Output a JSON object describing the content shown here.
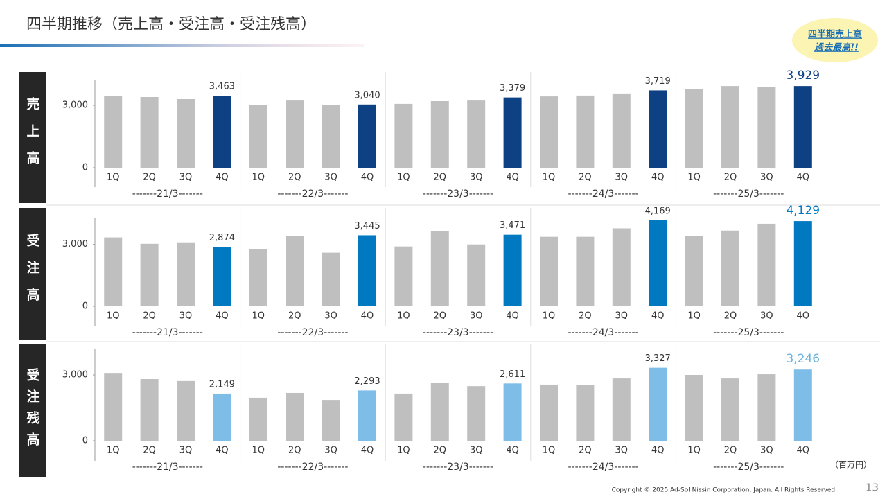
{
  "title": "四半期推移（売上高・受注高・受注残高）",
  "badge": [
    "四半期売上高",
    "過去最高!!"
  ],
  "unit": "（百万円）",
  "copyright": "Copyright © 2025 Ad-Sol Nissin Corporation, Japan. All Rights Reserved.",
  "page_number": "13",
  "chart_data": [
    {
      "type": "bar",
      "title": "売上高",
      "categories": [
        "1Q",
        "2Q",
        "3Q",
        "4Q",
        "1Q",
        "2Q",
        "3Q",
        "4Q",
        "1Q",
        "2Q",
        "3Q",
        "4Q",
        "1Q",
        "2Q",
        "3Q",
        "4Q",
        "1Q",
        "2Q",
        "3Q",
        "4Q"
      ],
      "groups": [
        "-------21/3-------",
        "-------22/3-------",
        "-------23/3-------",
        "-------24/3-------",
        "-------25/3-------"
      ],
      "values": [
        3450,
        3400,
        3300,
        3463,
        3030,
        3230,
        3000,
        3040,
        3070,
        3200,
        3230,
        3379,
        3430,
        3470,
        3570,
        3719,
        3800,
        3930,
        3900,
        3929
      ],
      "value_labels": [
        null,
        null,
        null,
        "3,463",
        null,
        null,
        null,
        "3,040",
        null,
        null,
        null,
        "3,379",
        null,
        null,
        null,
        "3,719",
        null,
        null,
        null,
        "3,929"
      ],
      "color": "#bfbfbf",
      "highlight": "4Q",
      "highlight_color": "#0d4183",
      "ylim": [
        0,
        4200
      ],
      "yticks": [
        0,
        {
          "value": 3000,
          "label": "3,000"
        }
      ]
    },
    {
      "type": "bar",
      "title": "受注高",
      "categories": [
        "1Q",
        "2Q",
        "3Q",
        "4Q",
        "1Q",
        "2Q",
        "3Q",
        "4Q",
        "1Q",
        "2Q",
        "3Q",
        "4Q",
        "1Q",
        "2Q",
        "3Q",
        "4Q",
        "1Q",
        "2Q",
        "3Q",
        "4Q"
      ],
      "groups": [
        "-------21/3-------",
        "-------22/3-------",
        "-------23/3-------",
        "-------24/3-------",
        "-------25/3-------"
      ],
      "values": [
        3340,
        3030,
        3100,
        2874,
        2760,
        3400,
        2600,
        3445,
        2900,
        3640,
        3000,
        3471,
        3370,
        3370,
        3780,
        4169,
        3400,
        3670,
        4000,
        4129
      ],
      "value_labels": [
        null,
        null,
        null,
        "2,874",
        null,
        null,
        null,
        "3,445",
        null,
        null,
        null,
        "3,471",
        null,
        null,
        null,
        "4,169",
        null,
        null,
        null,
        "4,129"
      ],
      "color": "#bfbfbf",
      "highlight": "4Q",
      "highlight_color": "#0079c1",
      "ylim": [
        0,
        4300
      ],
      "yticks": [
        0,
        {
          "value": 3000,
          "label": "3,000"
        }
      ]
    },
    {
      "type": "bar",
      "title": "受注残高",
      "categories": [
        "1Q",
        "2Q",
        "3Q",
        "4Q",
        "1Q",
        "2Q",
        "3Q",
        "4Q",
        "1Q",
        "2Q",
        "3Q",
        "4Q",
        "1Q",
        "2Q",
        "3Q",
        "4Q",
        "1Q",
        "2Q",
        "3Q",
        "4Q"
      ],
      "groups": [
        "-------21/3-------",
        "-------22/3-------",
        "-------23/3-------",
        "-------24/3-------",
        "-------25/3-------"
      ],
      "values": [
        3090,
        2810,
        2720,
        2149,
        1960,
        2180,
        1860,
        2293,
        2150,
        2650,
        2490,
        2611,
        2560,
        2530,
        2840,
        3327,
        3000,
        2840,
        3030,
        3246
      ],
      "value_labels": [
        null,
        null,
        null,
        "2,149",
        null,
        null,
        null,
        "2,293",
        null,
        null,
        null,
        "2,611",
        null,
        null,
        null,
        "3,327",
        null,
        null,
        null,
        "3,246"
      ],
      "color": "#bfbfbf",
      "highlight": "4Q",
      "highlight_color": "#7dbde8",
      "ylim": [
        0,
        4200
      ],
      "yticks": [
        0,
        {
          "value": 3000,
          "label": "3,000"
        }
      ]
    }
  ]
}
